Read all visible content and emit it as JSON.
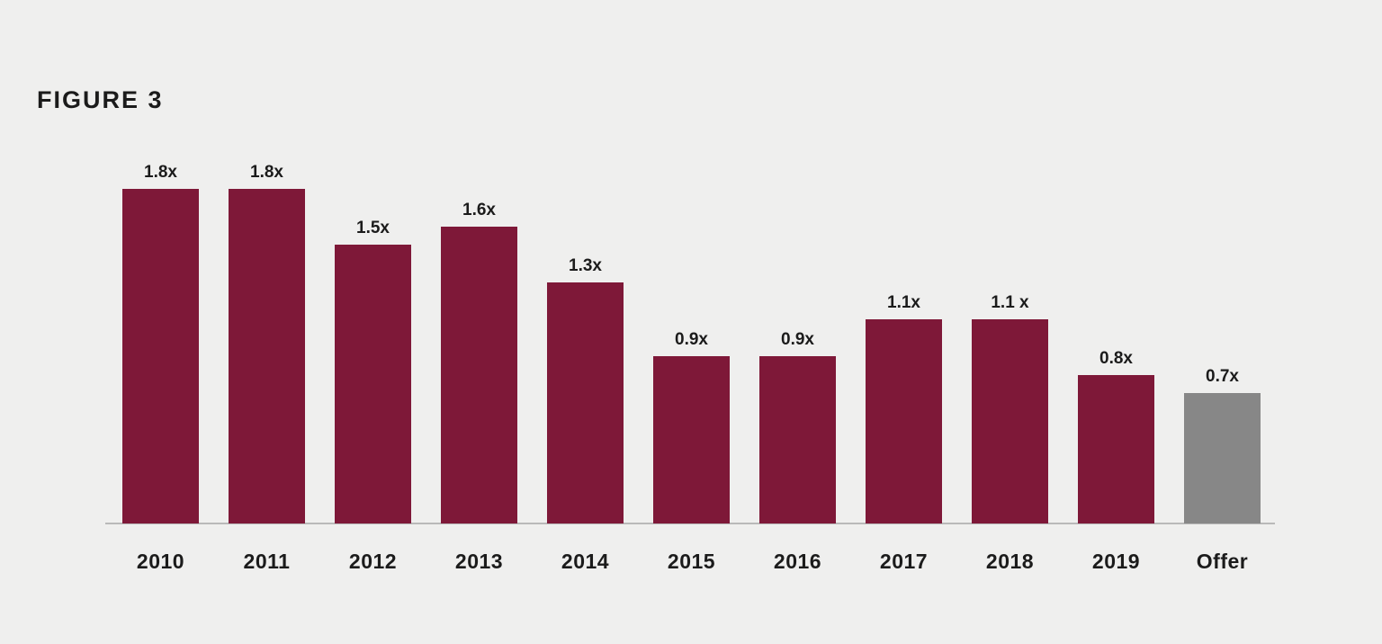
{
  "figure_label": "FIGURE 3",
  "colors": {
    "background": "#EFEFEE",
    "bar": "#7E1838",
    "offer_bar": "#878787",
    "axis": "#B9B9B9",
    "text": "#1B1B1B"
  },
  "chart_data": {
    "type": "bar",
    "title": "FIGURE 3",
    "categories": [
      "2010",
      "2011",
      "2012",
      "2013",
      "2014",
      "2015",
      "2016",
      "2017",
      "2018",
      "2019",
      "Offer"
    ],
    "values": [
      1.8,
      1.8,
      1.5,
      1.6,
      1.3,
      0.9,
      0.9,
      1.1,
      1.1,
      0.8,
      0.7
    ],
    "value_labels": [
      "1.8x",
      "1.8x",
      "1.5x",
      "1.6x",
      "1.3x",
      "0.9x",
      "0.9x",
      "1.1x",
      "1.1 x",
      "0.8x",
      "0.7x"
    ],
    "xlabel": "",
    "ylabel": "",
    "ylim": [
      0,
      2
    ],
    "grid": false,
    "legend": false,
    "highlight_category": "Offer"
  }
}
